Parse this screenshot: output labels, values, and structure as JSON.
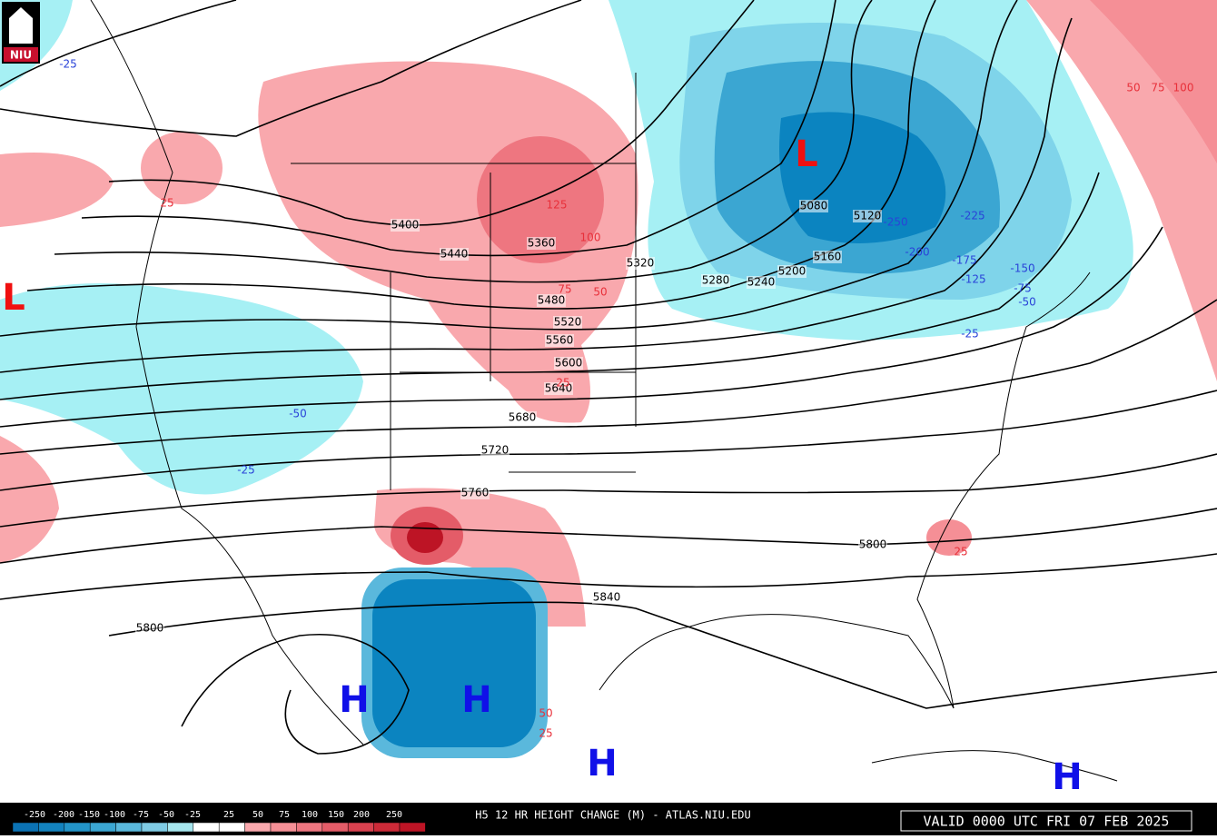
{
  "logo": "NIU",
  "title": "H5 12 HR HEIGHT CHANGE (M) - ATLAS.NIU.EDU",
  "valid": "VALID 0000 UTC FRI 07 FEB 2025",
  "colorbar": {
    "labels": [
      -250,
      -200,
      -150,
      -100,
      -75,
      -50,
      -25,
      25,
      50,
      75,
      100,
      150,
      200,
      250
    ],
    "colors": [
      "#0b72b4",
      "#1382be",
      "#2394c8",
      "#3ba6d2",
      "#5ab8dc",
      "#7fcbe4",
      "#a6e6ee",
      "#ffffff",
      "#ffffff",
      "#f9a8ad",
      "#f58f96",
      "#ee7680",
      "#e45c68",
      "#d9414f",
      "#cc2a38",
      "#bd1425"
    ]
  },
  "height_labels": [
    5400,
    5440,
    5360,
    5320,
    5280,
    5240,
    5200,
    5160,
    5120,
    5080,
    5480,
    5520,
    5560,
    5600,
    5640,
    5680,
    5720,
    5760,
    5800,
    5840,
    5800
  ],
  "change_labels": [
    125,
    100,
    75,
    50,
    25,
    25,
    50,
    75,
    100,
    25,
    50,
    25,
    -25,
    -250,
    -225,
    -200,
    -175,
    -150,
    -125,
    -75,
    -50,
    -25,
    -50,
    -25
  ],
  "pressure_centers": [
    "L",
    "L",
    "H",
    "H",
    "H",
    "H"
  ]
}
